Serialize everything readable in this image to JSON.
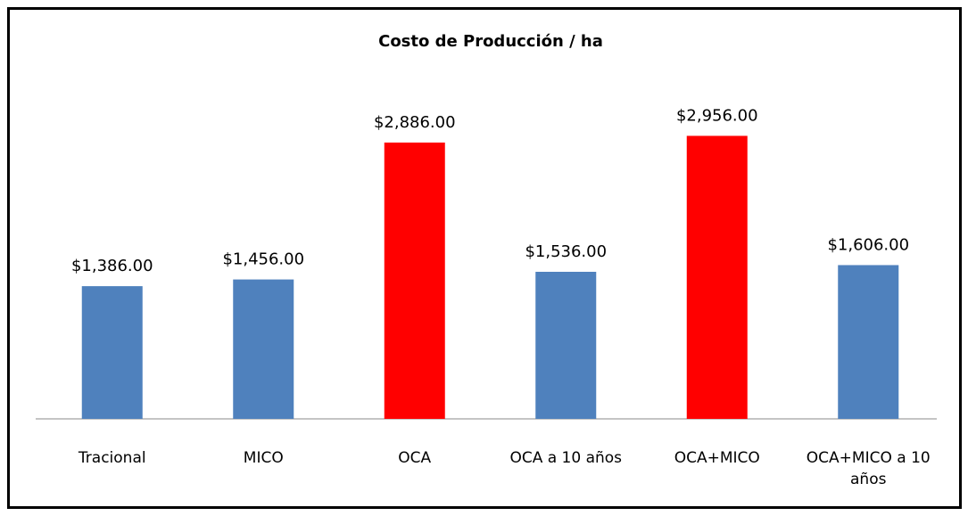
{
  "chart_data": {
    "type": "bar",
    "title": "Costo de Producción / ha",
    "categories": [
      "Tracional",
      "MICO",
      "OCA",
      "OCA a 10 años",
      "OCA+MICO",
      "OCA+MICO a 10 años"
    ],
    "values": [
      1386,
      1456,
      2886,
      1536,
      2956,
      1606
    ],
    "value_labels": [
      "$1,386.00",
      "$1,456.00",
      "$2,886.00",
      "$1,536.00",
      "$2,956.00",
      "$1,606.00"
    ],
    "colors": [
      "#4f81bd",
      "#4f81bd",
      "#ff0000",
      "#4f81bd",
      "#ff0000",
      "#4f81bd"
    ],
    "ylim": [
      0,
      3500
    ]
  }
}
